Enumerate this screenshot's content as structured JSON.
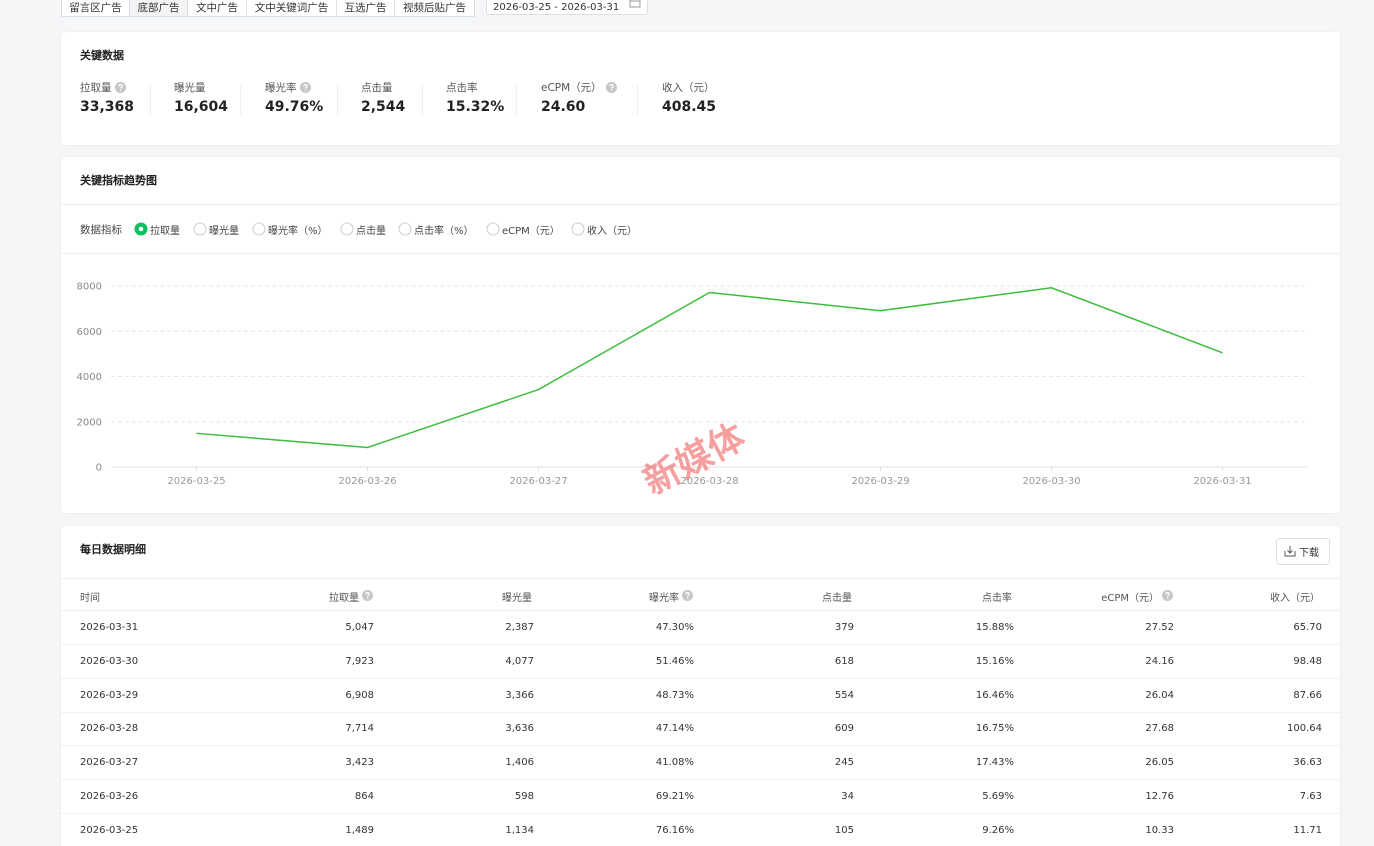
{
  "tabs": [
    {
      "label": "留言区广告",
      "active": false
    },
    {
      "label": "底部广告",
      "active": true
    },
    {
      "label": "文中广告",
      "active": false
    },
    {
      "label": "文中关键词广告",
      "active": false
    },
    {
      "label": "互选广告",
      "active": false
    },
    {
      "label": "视频后贴广告",
      "active": false
    }
  ],
  "date_range": "2026-03-25 - 2026-03-31",
  "key_data": {
    "title": "关键数据",
    "metrics": [
      {
        "label": "拉取量",
        "value": "33,368",
        "help": true
      },
      {
        "label": "曝光量",
        "value": "16,604",
        "help": false
      },
      {
        "label": "曝光率",
        "value": "49.76%",
        "help": true
      },
      {
        "label": "点击量",
        "value": "2,544",
        "help": false
      },
      {
        "label": "点击率",
        "value": "15.32%",
        "help": false
      },
      {
        "label": "eCPM（元）",
        "value": "24.60",
        "help": true
      },
      {
        "label": "收入（元）",
        "value": "408.45",
        "help": false
      }
    ]
  },
  "trend": {
    "title": "关键指标趋势图",
    "metric_label": "数据指标",
    "options": [
      {
        "label": "拉取量",
        "checked": true
      },
      {
        "label": "曝光量",
        "checked": false
      },
      {
        "label": "曝光率（%）",
        "checked": false
      },
      {
        "label": "点击量",
        "checked": false
      },
      {
        "label": "点击率（%）",
        "checked": false
      },
      {
        "label": "eCPM（元）",
        "checked": false
      },
      {
        "label": "收入（元）",
        "checked": false
      }
    ]
  },
  "chart_data": {
    "type": "line",
    "categories": [
      "2026-03-25",
      "2026-03-26",
      "2026-03-27",
      "2026-03-28",
      "2026-03-29",
      "2026-03-30",
      "2026-03-31"
    ],
    "values": [
      1489,
      864,
      3423,
      7714,
      6908,
      7923,
      5047
    ],
    "color": "#3dbd3d",
    "ylim": [
      0,
      8000
    ],
    "yticks": [
      0,
      2000,
      4000,
      6000,
      8000
    ],
    "grid": true
  },
  "watermark": "新媒体",
  "daily": {
    "title": "每日数据明细",
    "download": "下载",
    "columns": [
      {
        "label": "时间",
        "help": false
      },
      {
        "label": "拉取量",
        "help": true
      },
      {
        "label": "曝光量",
        "help": false
      },
      {
        "label": "曝光率",
        "help": true
      },
      {
        "label": "点击量",
        "help": false
      },
      {
        "label": "点击率",
        "help": false
      },
      {
        "label": "eCPM（元）",
        "help": true
      },
      {
        "label": "收入（元）",
        "help": false
      }
    ],
    "rows": [
      [
        "2026-03-31",
        "5,047",
        "2,387",
        "47.30%",
        "379",
        "15.88%",
        "27.52",
        "65.70"
      ],
      [
        "2026-03-30",
        "7,923",
        "4,077",
        "51.46%",
        "618",
        "15.16%",
        "24.16",
        "98.48"
      ],
      [
        "2026-03-29",
        "6,908",
        "3,366",
        "48.73%",
        "554",
        "16.46%",
        "26.04",
        "87.66"
      ],
      [
        "2026-03-28",
        "7,714",
        "3,636",
        "47.14%",
        "609",
        "16.75%",
        "27.68",
        "100.64"
      ],
      [
        "2026-03-27",
        "3,423",
        "1,406",
        "41.08%",
        "245",
        "17.43%",
        "26.05",
        "36.63"
      ],
      [
        "2026-03-26",
        "864",
        "598",
        "69.21%",
        "34",
        "5.69%",
        "12.76",
        "7.63"
      ],
      [
        "2026-03-25",
        "1,489",
        "1,134",
        "76.16%",
        "105",
        "9.26%",
        "10.33",
        "11.71"
      ]
    ]
  }
}
